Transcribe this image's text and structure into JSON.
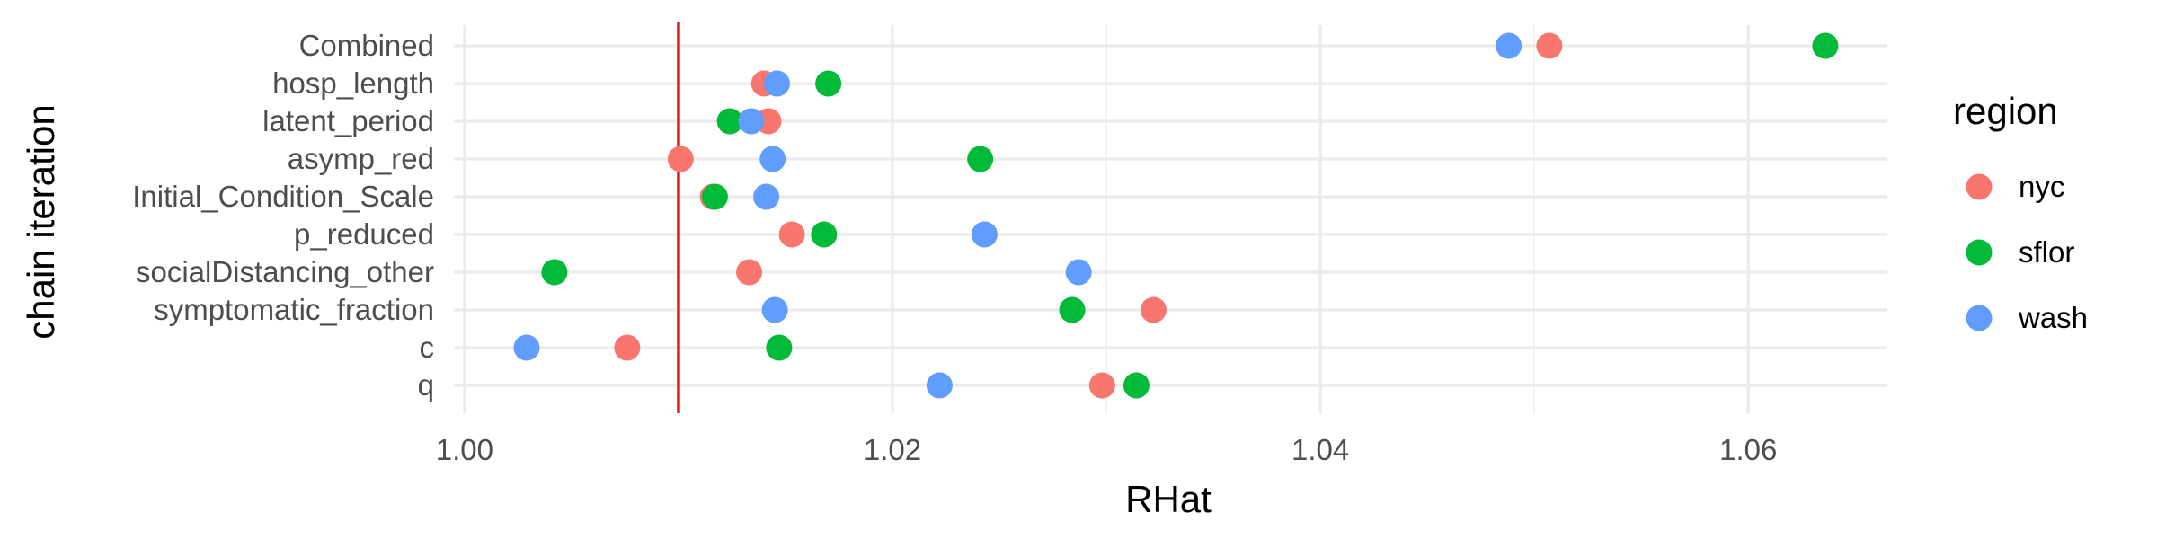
{
  "chart_data": {
    "type": "scatter",
    "xlabel": "RHat",
    "ylabel": "chain iteration",
    "xlim": [
      0.9995,
      1.0665
    ],
    "xticks": [
      1.0,
      1.02,
      1.04,
      1.06
    ],
    "xtick_labels": [
      "1.00",
      "1.02",
      "1.04",
      "1.06"
    ],
    "categories": [
      "Combined",
      "hosp_length",
      "latent_period",
      "asymp_red",
      "Initial_Condition_Scale",
      "p_reduced",
      "socialDistancing_other",
      "symptomatic_fraction",
      "c",
      "q"
    ],
    "reference_line": {
      "x": 1.01,
      "color": "#e41a1c"
    },
    "grid": true,
    "legend": {
      "title": "region",
      "position": "right"
    },
    "series": [
      {
        "name": "nyc",
        "color": "#F8766D",
        "values": [
          1.0507,
          1.014,
          1.0142,
          1.0101,
          1.0116,
          1.0153,
          1.0133,
          1.0322,
          1.0076,
          1.0298
        ]
      },
      {
        "name": "sflor",
        "color": "#00BA38",
        "values": [
          1.0636,
          1.017,
          1.0124,
          1.0241,
          1.0117,
          1.0168,
          1.0042,
          1.0284,
          1.0147,
          1.0314
        ]
      },
      {
        "name": "wash",
        "color": "#619CFF",
        "values": [
          1.0488,
          1.0146,
          1.0134,
          1.0144,
          1.0141,
          1.0243,
          1.0287,
          1.0145,
          1.0029,
          1.0222
        ]
      }
    ]
  }
}
